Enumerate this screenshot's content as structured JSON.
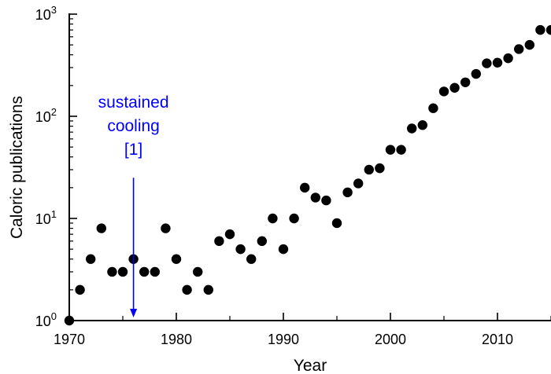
{
  "chart_data": {
    "type": "scatter",
    "title": "",
    "xlabel": "Year",
    "ylabel": "Caloric publications",
    "xlim": [
      1970,
      2015
    ],
    "ylim": [
      1,
      1000
    ],
    "yscale": "log",
    "grid": false,
    "series": [
      {
        "name": "Caloric publications",
        "color": "#000000",
        "x": [
          1970,
          1971,
          1972,
          1973,
          1974,
          1975,
          1976,
          1977,
          1978,
          1979,
          1980,
          1981,
          1982,
          1983,
          1984,
          1985,
          1986,
          1987,
          1988,
          1989,
          1990,
          1991,
          1992,
          1993,
          1994,
          1995,
          1996,
          1997,
          1998,
          1999,
          2000,
          2001,
          2002,
          2003,
          2004,
          2005,
          2006,
          2007,
          2008,
          2009,
          2010,
          2011,
          2012,
          2013,
          2014,
          2015
        ],
        "y": [
          1,
          2,
          4,
          8,
          3,
          3,
          4,
          3,
          3,
          8,
          4,
          2,
          3,
          2,
          6,
          7,
          5,
          4,
          6,
          10,
          5,
          10,
          20,
          16,
          15,
          9,
          18,
          22,
          30,
          31,
          47,
          47,
          76,
          82,
          120,
          175,
          190,
          215,
          260,
          330,
          335,
          370,
          455,
          500,
          700,
          700
        ]
      }
    ],
    "x_ticks": [
      {
        "value": 1970,
        "label": "1970"
      },
      {
        "value": 1980,
        "label": "1980"
      },
      {
        "value": 1990,
        "label": "1990"
      },
      {
        "value": 2000,
        "label": "2000"
      },
      {
        "value": 2010,
        "label": "2010"
      }
    ],
    "y_ticks": [
      {
        "value": 1,
        "base": "10",
        "exponent": "0"
      },
      {
        "value": 10,
        "base": "10",
        "exponent": "1"
      },
      {
        "value": 100,
        "base": "10",
        "exponent": "2"
      },
      {
        "value": 1000,
        "base": "10",
        "exponent": "3"
      }
    ],
    "annotation": {
      "lines": [
        "sustained",
        "cooling",
        "[1]"
      ],
      "x": 1976,
      "arrow_top_y": 25,
      "arrow_bottom_y": 1,
      "color": "#0000ff"
    }
  }
}
